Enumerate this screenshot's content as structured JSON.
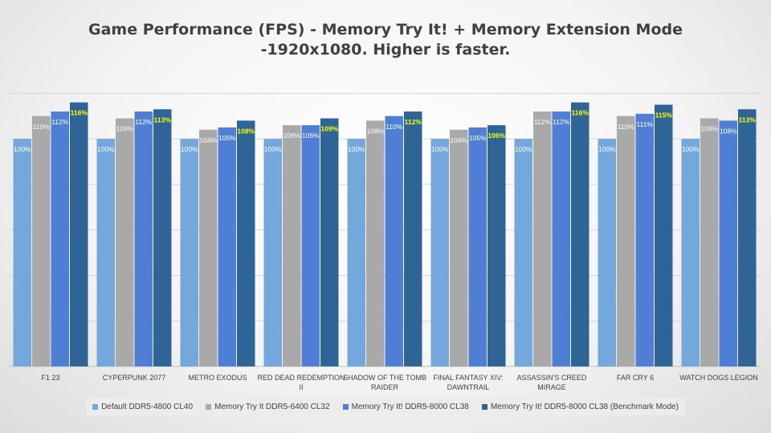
{
  "chart_data": {
    "type": "bar",
    "title": "Game Performance (FPS) - Memory Try It! + Memory Extension Mode",
    "subtitle": "-1920x1080. Higher is faster.",
    "categories": [
      "F1 23",
      "CYPERPUNK 2077",
      "METRO EXODUS",
      "RED DEAD REDEMPTION II",
      "SHADOW OF THE TOMB RAIDER",
      "FINAL FANTASY XIV: DAWNTRAIL",
      "ASSASSIN'S CREED MIRAGE",
      "FAR CRY 6",
      "WATCH DOGS LEGION"
    ],
    "category_lines": [
      [
        "F1 23"
      ],
      [
        "CYPERPUNK 2077"
      ],
      [
        "METRO EXODUS"
      ],
      [
        "RED DEAD REDEMPTION",
        "II"
      ],
      [
        "SHADOW OF THE TOMB",
        "RAIDER"
      ],
      [
        "FINAL FANTASY XIV:",
        "DAWNTRAIL"
      ],
      [
        "ASSASSIN'S CREED",
        "MIRAGE"
      ],
      [
        "FAR CRY 6"
      ],
      [
        "WATCH DOGS LEGION"
      ]
    ],
    "series": [
      {
        "name": "Default DDR5-4800 CL40",
        "color": "#74a7dc",
        "label_color": "#ffffff",
        "values": [
          100,
          100,
          100,
          100,
          100,
          100,
          100,
          100,
          100
        ],
        "labels": [
          "100%",
          "100%",
          "100%",
          "100%",
          "100%",
          "100%",
          "100%",
          "100%",
          "100%"
        ]
      },
      {
        "name": "Memory Try It DDR5-6400 CL32",
        "color": "#a9a9a9",
        "label_color": "#ffffff",
        "values": [
          110,
          109,
          104,
          106,
          108,
          104,
          112,
          110,
          109
        ],
        "labels": [
          "110%",
          "109%",
          "104%",
          "106%",
          "108%",
          "104%",
          "112%",
          "110%",
          "109%"
        ]
      },
      {
        "name": "Memory Try It! DDR5-8000 CL38",
        "color": "#4f7fd4",
        "label_color": "#ffffff",
        "values": [
          112,
          112,
          105,
          106,
          110,
          105,
          112,
          111,
          108
        ],
        "labels": [
          "112%",
          "112%",
          "105%",
          "106%",
          "110%",
          "105%",
          "112%",
          "111%",
          "108%"
        ]
      },
      {
        "name": "Memory Try It! DDR5-8000 CL38 (Benchmark Mode)",
        "color": "#2f6596",
        "label_color": "#ffff00",
        "values": [
          116,
          113,
          108,
          109,
          112,
          106,
          116,
          115,
          113
        ],
        "labels": [
          "116%",
          "113%",
          "108%",
          "109%",
          "112%",
          "106%",
          "116%",
          "115%",
          "113%"
        ]
      }
    ],
    "ylim": [
      0,
      130
    ],
    "grid": true,
    "legend": "bottom",
    "xlabel": "",
    "ylabel": ""
  }
}
